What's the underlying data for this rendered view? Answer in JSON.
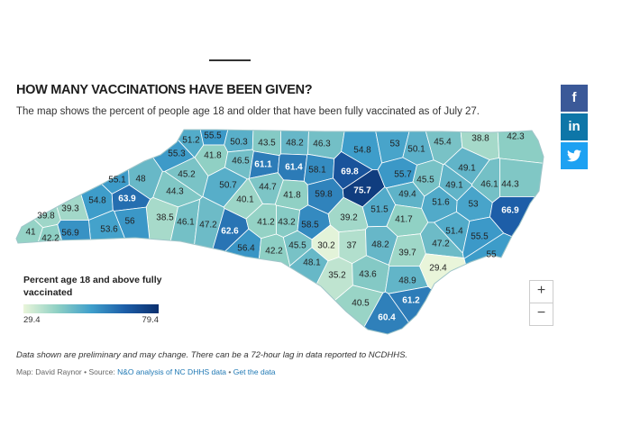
{
  "header": {
    "title": "HOW MANY VACCINATIONS HAVE BEEN GIVEN?",
    "subtitle": "The map shows the percent of people age 18 and older that have been fully vaccinated as of July 27."
  },
  "legend": {
    "title": "Percent age 18 and above fully vaccinated",
    "min_label": "29.4",
    "max_label": "79.4",
    "colors": [
      "#e9f5da",
      "#8fd0c4",
      "#3f9fcb",
      "#1d5ea8",
      "#0b2f6e"
    ]
  },
  "map": {
    "region": "North Carolina counties",
    "metric": "Percent age 18 and above fully vaccinated",
    "scale_min": 29.4,
    "scale_max": 79.4,
    "county_values": [
      "51.2",
      "55.5",
      "50.3",
      "43.5",
      "48.2",
      "46.3",
      "54.8",
      "53",
      "50.1",
      "45.4",
      "38.8",
      "42.3",
      "55.3",
      "41.8",
      "46.5",
      "61.1",
      "61.4",
      "58.1",
      "69.8",
      "55.7",
      "45.5",
      "49.1",
      "45.2",
      "50.7",
      "44.7",
      "41.8",
      "59.8",
      "75.7",
      "49.4",
      "49.1",
      "46.1",
      "44.3",
      "55.1",
      "48",
      "44.3",
      "40.1",
      "51.6",
      "53",
      "66.9",
      "54.8",
      "63.9",
      "39.3",
      "39.8",
      "38.5",
      "46.1",
      "47.2",
      "62.6",
      "41.2",
      "43.2",
      "58.5",
      "39.2",
      "51.5",
      "41.7",
      "56",
      "53.6",
      "41",
      "42.2",
      "56.9",
      "56.4",
      "42.2",
      "45.5",
      "30.2",
      "37",
      "48.2",
      "39.7",
      "47.2",
      "51.4",
      "55.5",
      "55",
      "48.1",
      "35.2",
      "43.6",
      "48.9",
      "29.4",
      "40.5",
      "61.2",
      "60.4"
    ]
  },
  "zoom": {
    "in_label": "+",
    "out_label": "−"
  },
  "social": {
    "facebook": "f",
    "linkedin": "in",
    "twitter": "t"
  },
  "footer": {
    "note": "Data shown are preliminary and may change. There can be a 72-hour lag in data reported to NCDHHS.",
    "credit_prefix": "Map: David Raynor • Source: ",
    "source_link": "N&O analysis of NC DHHS data",
    "separator": " • ",
    "get_data_link": "Get the data"
  }
}
